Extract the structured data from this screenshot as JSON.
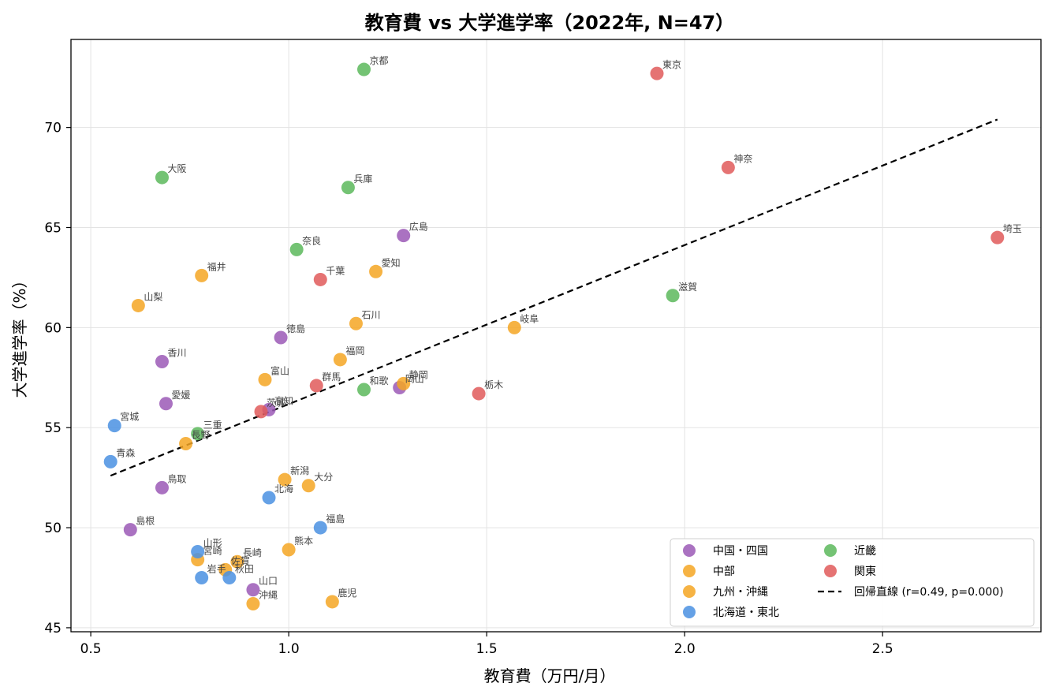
{
  "chart_data": {
    "type": "scatter",
    "title": "教育費 vs 大学進学率（2022年, N=47）",
    "xlabel": "教育費（万円/月）",
    "ylabel": "大学進学率（%）",
    "xlim": [
      0.45,
      2.9
    ],
    "ylim": [
      44.8,
      74.4
    ],
    "xticks": [
      "0.5",
      "1.0",
      "1.5",
      "2.0",
      "2.5"
    ],
    "yticks": [
      "45",
      "50",
      "55",
      "60",
      "65",
      "70"
    ],
    "grid": true,
    "legend_position": "lower-right",
    "legend_ncol": 2,
    "regression": {
      "label": "回帰直線 (r=0.49, p=0.000)",
      "x": [
        0.55,
        2.79
      ],
      "y": [
        52.6,
        70.4
      ],
      "color": "#000000"
    },
    "series": [
      {
        "name": "中国・四国",
        "color": "#9b59b6",
        "points": [
          {
            "label": "広島",
            "x": 1.29,
            "y": 64.6
          },
          {
            "label": "徳島",
            "x": 0.98,
            "y": 59.5
          },
          {
            "label": "香川",
            "x": 0.68,
            "y": 58.3
          },
          {
            "label": "愛媛",
            "x": 0.69,
            "y": 56.2
          },
          {
            "label": "岡山",
            "x": 1.28,
            "y": 57.0
          },
          {
            "label": "高知",
            "x": 0.95,
            "y": 55.9
          },
          {
            "label": "鳥取",
            "x": 0.68,
            "y": 52.0
          },
          {
            "label": "島根",
            "x": 0.6,
            "y": 49.9
          },
          {
            "label": "山口",
            "x": 0.91,
            "y": 46.9
          }
        ]
      },
      {
        "name": "中部",
        "color": "#f5a623",
        "points": [
          {
            "label": "福井",
            "x": 0.78,
            "y": 62.6
          },
          {
            "label": "愛知",
            "x": 1.22,
            "y": 62.8
          },
          {
            "label": "山梨",
            "x": 0.62,
            "y": 61.1
          },
          {
            "label": "石川",
            "x": 1.17,
            "y": 60.2
          },
          {
            "label": "岐阜",
            "x": 1.57,
            "y": 60.0
          },
          {
            "label": "富山",
            "x": 0.94,
            "y": 57.4
          },
          {
            "label": "静岡",
            "x": 1.29,
            "y": 57.2
          },
          {
            "label": "長野",
            "x": 0.74,
            "y": 54.2
          },
          {
            "label": "新潟",
            "x": 0.99,
            "y": 52.4
          }
        ]
      },
      {
        "name": "九州・沖縄",
        "color": "#f5a623",
        "points": [
          {
            "label": "福岡",
            "x": 1.13,
            "y": 58.4
          },
          {
            "label": "大分",
            "x": 1.05,
            "y": 52.1
          },
          {
            "label": "熊本",
            "x": 1.0,
            "y": 48.9
          },
          {
            "label": "長崎",
            "x": 0.87,
            "y": 48.3
          },
          {
            "label": "宮崎",
            "x": 0.77,
            "y": 48.4
          },
          {
            "label": "佐賀",
            "x": 0.84,
            "y": 47.9
          },
          {
            "label": "沖縄",
            "x": 0.91,
            "y": 46.2
          },
          {
            "label": "鹿児",
            "x": 1.11,
            "y": 46.3
          }
        ]
      },
      {
        "name": "北海道・東北",
        "color": "#4a90e2",
        "points": [
          {
            "label": "宮城",
            "x": 0.56,
            "y": 55.1
          },
          {
            "label": "青森",
            "x": 0.55,
            "y": 53.3
          },
          {
            "label": "北海",
            "x": 0.95,
            "y": 51.5
          },
          {
            "label": "福島",
            "x": 1.08,
            "y": 50.0
          },
          {
            "label": "山形",
            "x": 0.77,
            "y": 48.8
          },
          {
            "label": "岩手",
            "x": 0.78,
            "y": 47.5
          },
          {
            "label": "秋田",
            "x": 0.85,
            "y": 47.5
          }
        ]
      },
      {
        "name": "近畿",
        "color": "#5cb85c",
        "points": [
          {
            "label": "京都",
            "x": 1.19,
            "y": 72.9
          },
          {
            "label": "大阪",
            "x": 0.68,
            "y": 67.5
          },
          {
            "label": "兵庫",
            "x": 1.15,
            "y": 67.0
          },
          {
            "label": "奈良",
            "x": 1.02,
            "y": 63.9
          },
          {
            "label": "滋賀",
            "x": 1.97,
            "y": 61.6
          },
          {
            "label": "和歌",
            "x": 1.19,
            "y": 56.9
          },
          {
            "label": "三重",
            "x": 0.77,
            "y": 54.7
          }
        ]
      },
      {
        "name": "関東",
        "color": "#e05a5a",
        "points": [
          {
            "label": "東京",
            "x": 1.93,
            "y": 72.7
          },
          {
            "label": "神奈",
            "x": 2.11,
            "y": 68.0
          },
          {
            "label": "埼玉",
            "x": 2.79,
            "y": 64.5
          },
          {
            "label": "千葉",
            "x": 1.08,
            "y": 62.4
          },
          {
            "label": "群馬",
            "x": 1.07,
            "y": 57.1
          },
          {
            "label": "栃木",
            "x": 1.48,
            "y": 56.7
          },
          {
            "label": "茨城",
            "x": 0.93,
            "y": 55.8
          }
        ]
      }
    ]
  }
}
